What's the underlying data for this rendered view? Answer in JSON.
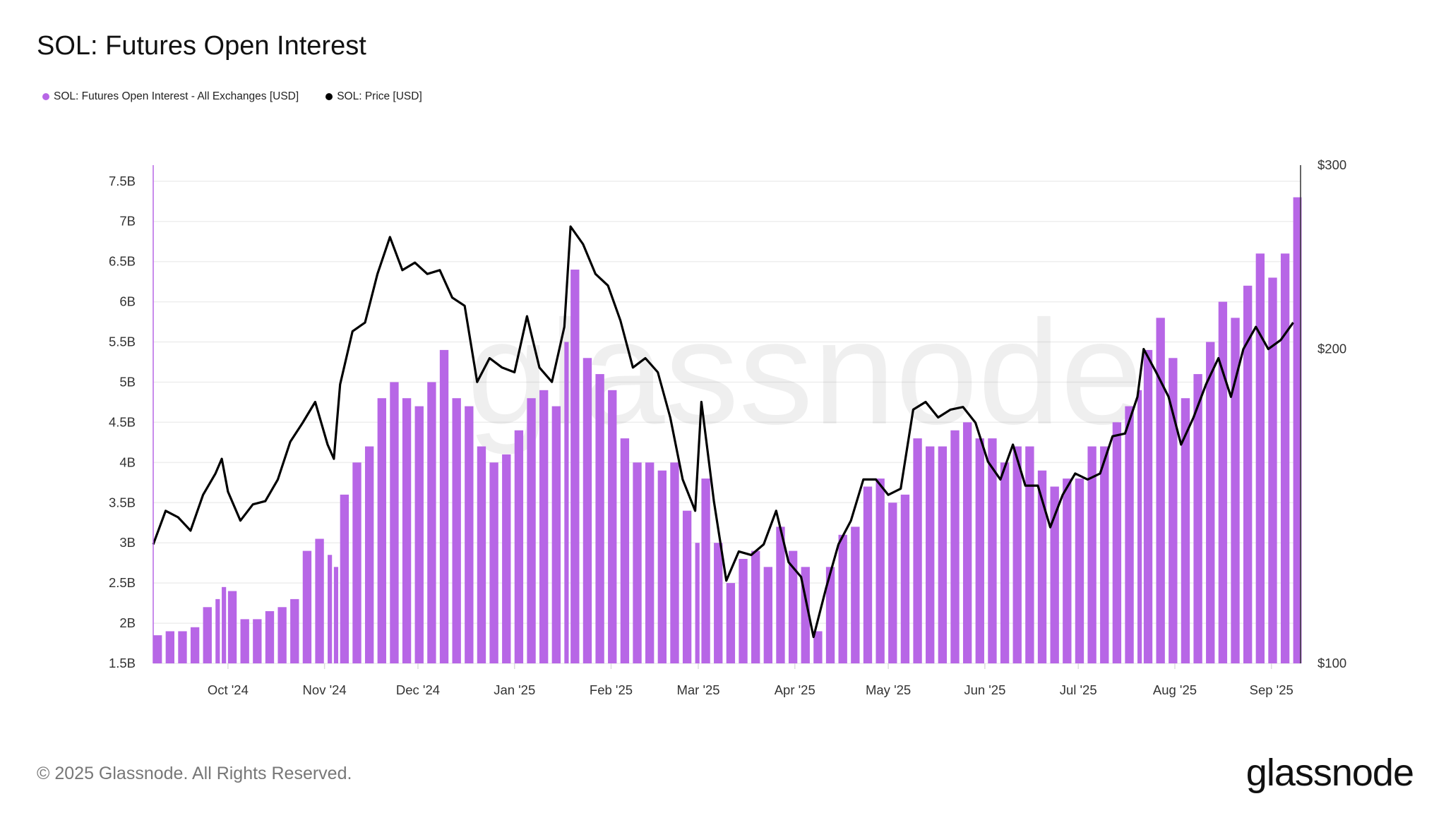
{
  "title": "SOL: Futures Open Interest",
  "copyright": "© 2025 Glassnode. All Rights Reserved.",
  "logo": "glassnode",
  "watermark": "glassnode",
  "colors": {
    "open_interest": "#B766E6",
    "price": "#000000",
    "grid": "#EEEEEE"
  },
  "chart_data": {
    "type": "bar+line",
    "title": "SOL: Futures Open Interest",
    "legend_placement": "top-left",
    "grid": true,
    "x_ticks": [
      "Oct '24",
      "Nov '24",
      "Dec '24",
      "Jan '25",
      "Feb '25",
      "Mar '25",
      "Apr '25",
      "May '25",
      "Jun '25",
      "Jul '25",
      "Aug '25",
      "Sep '25"
    ],
    "x_tick_dates": [
      "2024-10-01",
      "2024-11-01",
      "2024-12-01",
      "2025-01-01",
      "2025-02-01",
      "2025-03-01",
      "2025-04-01",
      "2025-05-01",
      "2025-06-01",
      "2025-07-01",
      "2025-08-01",
      "2025-09-01"
    ],
    "xlim": [
      "2024-09-07",
      "2025-09-09"
    ],
    "y_left": {
      "ticks": [
        "1.5B",
        "2B",
        "2.5B",
        "3B",
        "3.5B",
        "4B",
        "4.5B",
        "5B",
        "5.5B",
        "6B",
        "6.5B",
        "7B",
        "7.5B"
      ],
      "tick_values": [
        1.5,
        2,
        2.5,
        3,
        3.5,
        4,
        4.5,
        5,
        5.5,
        6,
        6.5,
        7,
        7.5
      ],
      "ylim": [
        1.5,
        7.7
      ],
      "unit": "B USD"
    },
    "y_right": {
      "ticks": [
        "$100",
        "$200",
        "$300"
      ],
      "tick_values": [
        100,
        200,
        300
      ],
      "ylim": [
        100,
        300
      ],
      "scale": "log"
    },
    "series": [
      {
        "name": "SOL: Futures Open Interest - All Exchanges [USD]",
        "type": "bar",
        "axis": "left"
      },
      {
        "name": "SOL: Price [USD]",
        "type": "line",
        "axis": "right"
      }
    ],
    "points": [
      [
        "2024-09-07",
        1.85,
        130
      ],
      [
        "2024-09-11",
        1.9,
        140
      ],
      [
        "2024-09-15",
        1.9,
        138
      ],
      [
        "2024-09-19",
        1.95,
        134
      ],
      [
        "2024-09-23",
        2.2,
        145
      ],
      [
        "2024-09-27",
        2.3,
        152
      ],
      [
        "2024-09-29",
        2.45,
        157
      ],
      [
        "2024-10-01",
        2.4,
        146
      ],
      [
        "2024-10-05",
        2.05,
        137
      ],
      [
        "2024-10-09",
        2.05,
        142
      ],
      [
        "2024-10-13",
        2.15,
        143
      ],
      [
        "2024-10-17",
        2.2,
        150
      ],
      [
        "2024-10-21",
        2.3,
        163
      ],
      [
        "2024-10-25",
        2.9,
        170
      ],
      [
        "2024-10-29",
        3.05,
        178
      ],
      [
        "2024-11-02",
        2.85,
        162
      ],
      [
        "2024-11-04",
        2.7,
        157
      ],
      [
        "2024-11-06",
        3.6,
        185
      ],
      [
        "2024-11-10",
        4.0,
        208
      ],
      [
        "2024-11-14",
        4.2,
        212
      ],
      [
        "2024-11-18",
        4.8,
        236
      ],
      [
        "2024-11-22",
        5.0,
        256
      ],
      [
        "2024-11-26",
        4.8,
        238
      ],
      [
        "2024-11-30",
        4.7,
        242
      ],
      [
        "2024-12-04",
        5.0,
        236
      ],
      [
        "2024-12-08",
        5.4,
        238
      ],
      [
        "2024-12-12",
        4.8,
        224
      ],
      [
        "2024-12-16",
        4.7,
        220
      ],
      [
        "2024-12-20",
        4.2,
        186
      ],
      [
        "2024-12-24",
        4.0,
        196
      ],
      [
        "2024-12-28",
        4.1,
        192
      ],
      [
        "2025-01-01",
        4.4,
        190
      ],
      [
        "2025-01-05",
        4.8,
        215
      ],
      [
        "2025-01-09",
        4.9,
        192
      ],
      [
        "2025-01-13",
        4.7,
        186
      ],
      [
        "2025-01-17",
        5.5,
        210
      ],
      [
        "2025-01-19",
        6.4,
        262
      ],
      [
        "2025-01-23",
        5.3,
        252
      ],
      [
        "2025-01-27",
        5.1,
        236
      ],
      [
        "2025-01-31",
        4.9,
        230
      ],
      [
        "2025-02-04",
        4.3,
        213
      ],
      [
        "2025-02-08",
        4.0,
        192
      ],
      [
        "2025-02-12",
        4.0,
        196
      ],
      [
        "2025-02-16",
        3.9,
        190
      ],
      [
        "2025-02-20",
        4.0,
        172
      ],
      [
        "2025-02-24",
        3.4,
        150
      ],
      [
        "2025-02-28",
        3.0,
        140
      ],
      [
        "2025-03-02",
        3.8,
        178
      ],
      [
        "2025-03-06",
        3.0,
        143
      ],
      [
        "2025-03-10",
        2.5,
        120
      ],
      [
        "2025-03-14",
        2.8,
        128
      ],
      [
        "2025-03-18",
        2.9,
        127
      ],
      [
        "2025-03-22",
        2.7,
        130
      ],
      [
        "2025-03-26",
        3.2,
        140
      ],
      [
        "2025-03-30",
        2.9,
        125
      ],
      [
        "2025-04-03",
        2.7,
        121
      ],
      [
        "2025-04-07",
        1.9,
        106
      ],
      [
        "2025-04-11",
        2.7,
        118
      ],
      [
        "2025-04-15",
        3.1,
        130
      ],
      [
        "2025-04-19",
        3.2,
        137
      ],
      [
        "2025-04-23",
        3.7,
        150
      ],
      [
        "2025-04-27",
        3.8,
        150
      ],
      [
        "2025-05-01",
        3.5,
        145
      ],
      [
        "2025-05-05",
        3.6,
        147
      ],
      [
        "2025-05-09",
        4.3,
        175
      ],
      [
        "2025-05-13",
        4.2,
        178
      ],
      [
        "2025-05-17",
        4.2,
        172
      ],
      [
        "2025-05-21",
        4.4,
        175
      ],
      [
        "2025-05-25",
        4.5,
        176
      ],
      [
        "2025-05-29",
        4.3,
        170
      ],
      [
        "2025-06-02",
        4.3,
        156
      ],
      [
        "2025-06-06",
        4.0,
        150
      ],
      [
        "2025-06-10",
        4.2,
        162
      ],
      [
        "2025-06-14",
        4.2,
        148
      ],
      [
        "2025-06-18",
        3.9,
        148
      ],
      [
        "2025-06-22",
        3.7,
        135
      ],
      [
        "2025-06-26",
        3.8,
        145
      ],
      [
        "2025-06-30",
        3.8,
        152
      ],
      [
        "2025-07-04",
        4.2,
        150
      ],
      [
        "2025-07-08",
        4.2,
        152
      ],
      [
        "2025-07-12",
        4.5,
        165
      ],
      [
        "2025-07-16",
        4.7,
        166
      ],
      [
        "2025-07-20",
        4.9,
        180
      ],
      [
        "2025-07-22",
        5.4,
        200
      ],
      [
        "2025-07-26",
        5.8,
        190
      ],
      [
        "2025-07-30",
        5.3,
        180
      ],
      [
        "2025-08-03",
        4.8,
        162
      ],
      [
        "2025-08-07",
        5.1,
        172
      ],
      [
        "2025-08-11",
        5.5,
        185
      ],
      [
        "2025-08-15",
        6.0,
        196
      ],
      [
        "2025-08-19",
        5.8,
        180
      ],
      [
        "2025-08-23",
        6.2,
        200
      ],
      [
        "2025-08-27",
        6.6,
        210
      ],
      [
        "2025-08-31",
        6.3,
        200
      ],
      [
        "2025-09-04",
        6.6,
        204
      ],
      [
        "2025-09-08",
        7.3,
        212
      ]
    ]
  }
}
